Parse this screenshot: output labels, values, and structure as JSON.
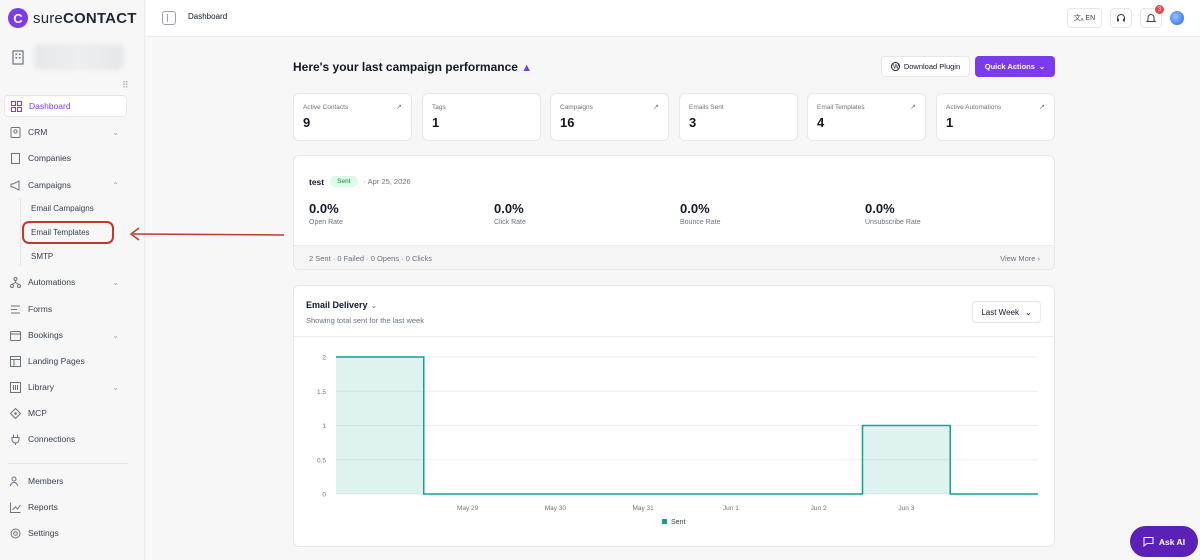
{
  "brand": {
    "logo_mark": "C",
    "name_light": "sure",
    "name_bold": "CONTACT"
  },
  "topbar": {
    "breadcrumb": "Dashboard",
    "lang": "EN",
    "notif_count": "3"
  },
  "sidebar": {
    "items": [
      {
        "label": "Dashboard",
        "icon": "dashboard-icon"
      },
      {
        "label": "CRM",
        "icon": "crm-icon"
      },
      {
        "label": "Companies",
        "icon": "building-icon"
      },
      {
        "label": "Campaigns",
        "icon": "megaphone-icon"
      },
      {
        "label": "Automations",
        "icon": "automation-icon"
      },
      {
        "label": "Forms",
        "icon": "forms-icon"
      },
      {
        "label": "Bookings",
        "icon": "calendar-icon"
      },
      {
        "label": "Landing Pages",
        "icon": "page-icon"
      },
      {
        "label": "Library",
        "icon": "library-icon"
      },
      {
        "label": "MCP",
        "icon": "mcp-icon"
      },
      {
        "label": "Connections",
        "icon": "plug-icon"
      },
      {
        "label": "Members",
        "icon": "members-icon"
      },
      {
        "label": "Reports",
        "icon": "reports-icon"
      },
      {
        "label": "Settings",
        "icon": "gear-icon"
      }
    ],
    "sub_items": [
      "Email Campaigns",
      "Email Templates",
      "SMTP"
    ]
  },
  "main": {
    "title": "Here's your last campaign performance",
    "download_label": "Download Plugin",
    "quick_actions_label": "Quick Actions",
    "stats": [
      {
        "label": "Active Contacts",
        "value": "9"
      },
      {
        "label": "Tags",
        "value": "1"
      },
      {
        "label": "Campaigns",
        "value": "16"
      },
      {
        "label": "Emails Sent",
        "value": "3"
      },
      {
        "label": "Email Templates",
        "value": "4"
      },
      {
        "label": "Active Automations",
        "value": "1"
      }
    ],
    "campaign": {
      "name": "test",
      "status": "Sent",
      "date": "· Apr 25, 2026",
      "metrics": [
        {
          "value": "0.0%",
          "label": "Open Rate"
        },
        {
          "value": "0.0%",
          "label": "Click Rate"
        },
        {
          "value": "0.0%",
          "label": "Bounce Rate"
        },
        {
          "value": "0.0%",
          "label": "Unsubscribe Rate"
        }
      ],
      "summary": "2 Sent · 0 Failed · 0 Opens · 0 Clicks",
      "view_more": "View More ›"
    },
    "delivery": {
      "title": "Email Delivery",
      "subtitle": "Showing total sent for the last week",
      "range": "Last Week"
    }
  },
  "ask_ai": "Ask AI",
  "chart_data": {
    "type": "area",
    "x": [
      "",
      "May 29",
      "May 30",
      "May 31",
      "Jun 1",
      "Jun 2",
      "Jun 3",
      ""
    ],
    "series": [
      {
        "name": "Sent",
        "values": [
          2,
          0,
          0,
          0,
          0,
          0,
          1,
          0
        ]
      }
    ],
    "ylim": [
      0,
      2
    ],
    "yticks": [
      "0",
      "0.5",
      "1",
      "1.5",
      "2"
    ],
    "grid": true,
    "legend": "bottom-center",
    "color": "#14a098"
  }
}
